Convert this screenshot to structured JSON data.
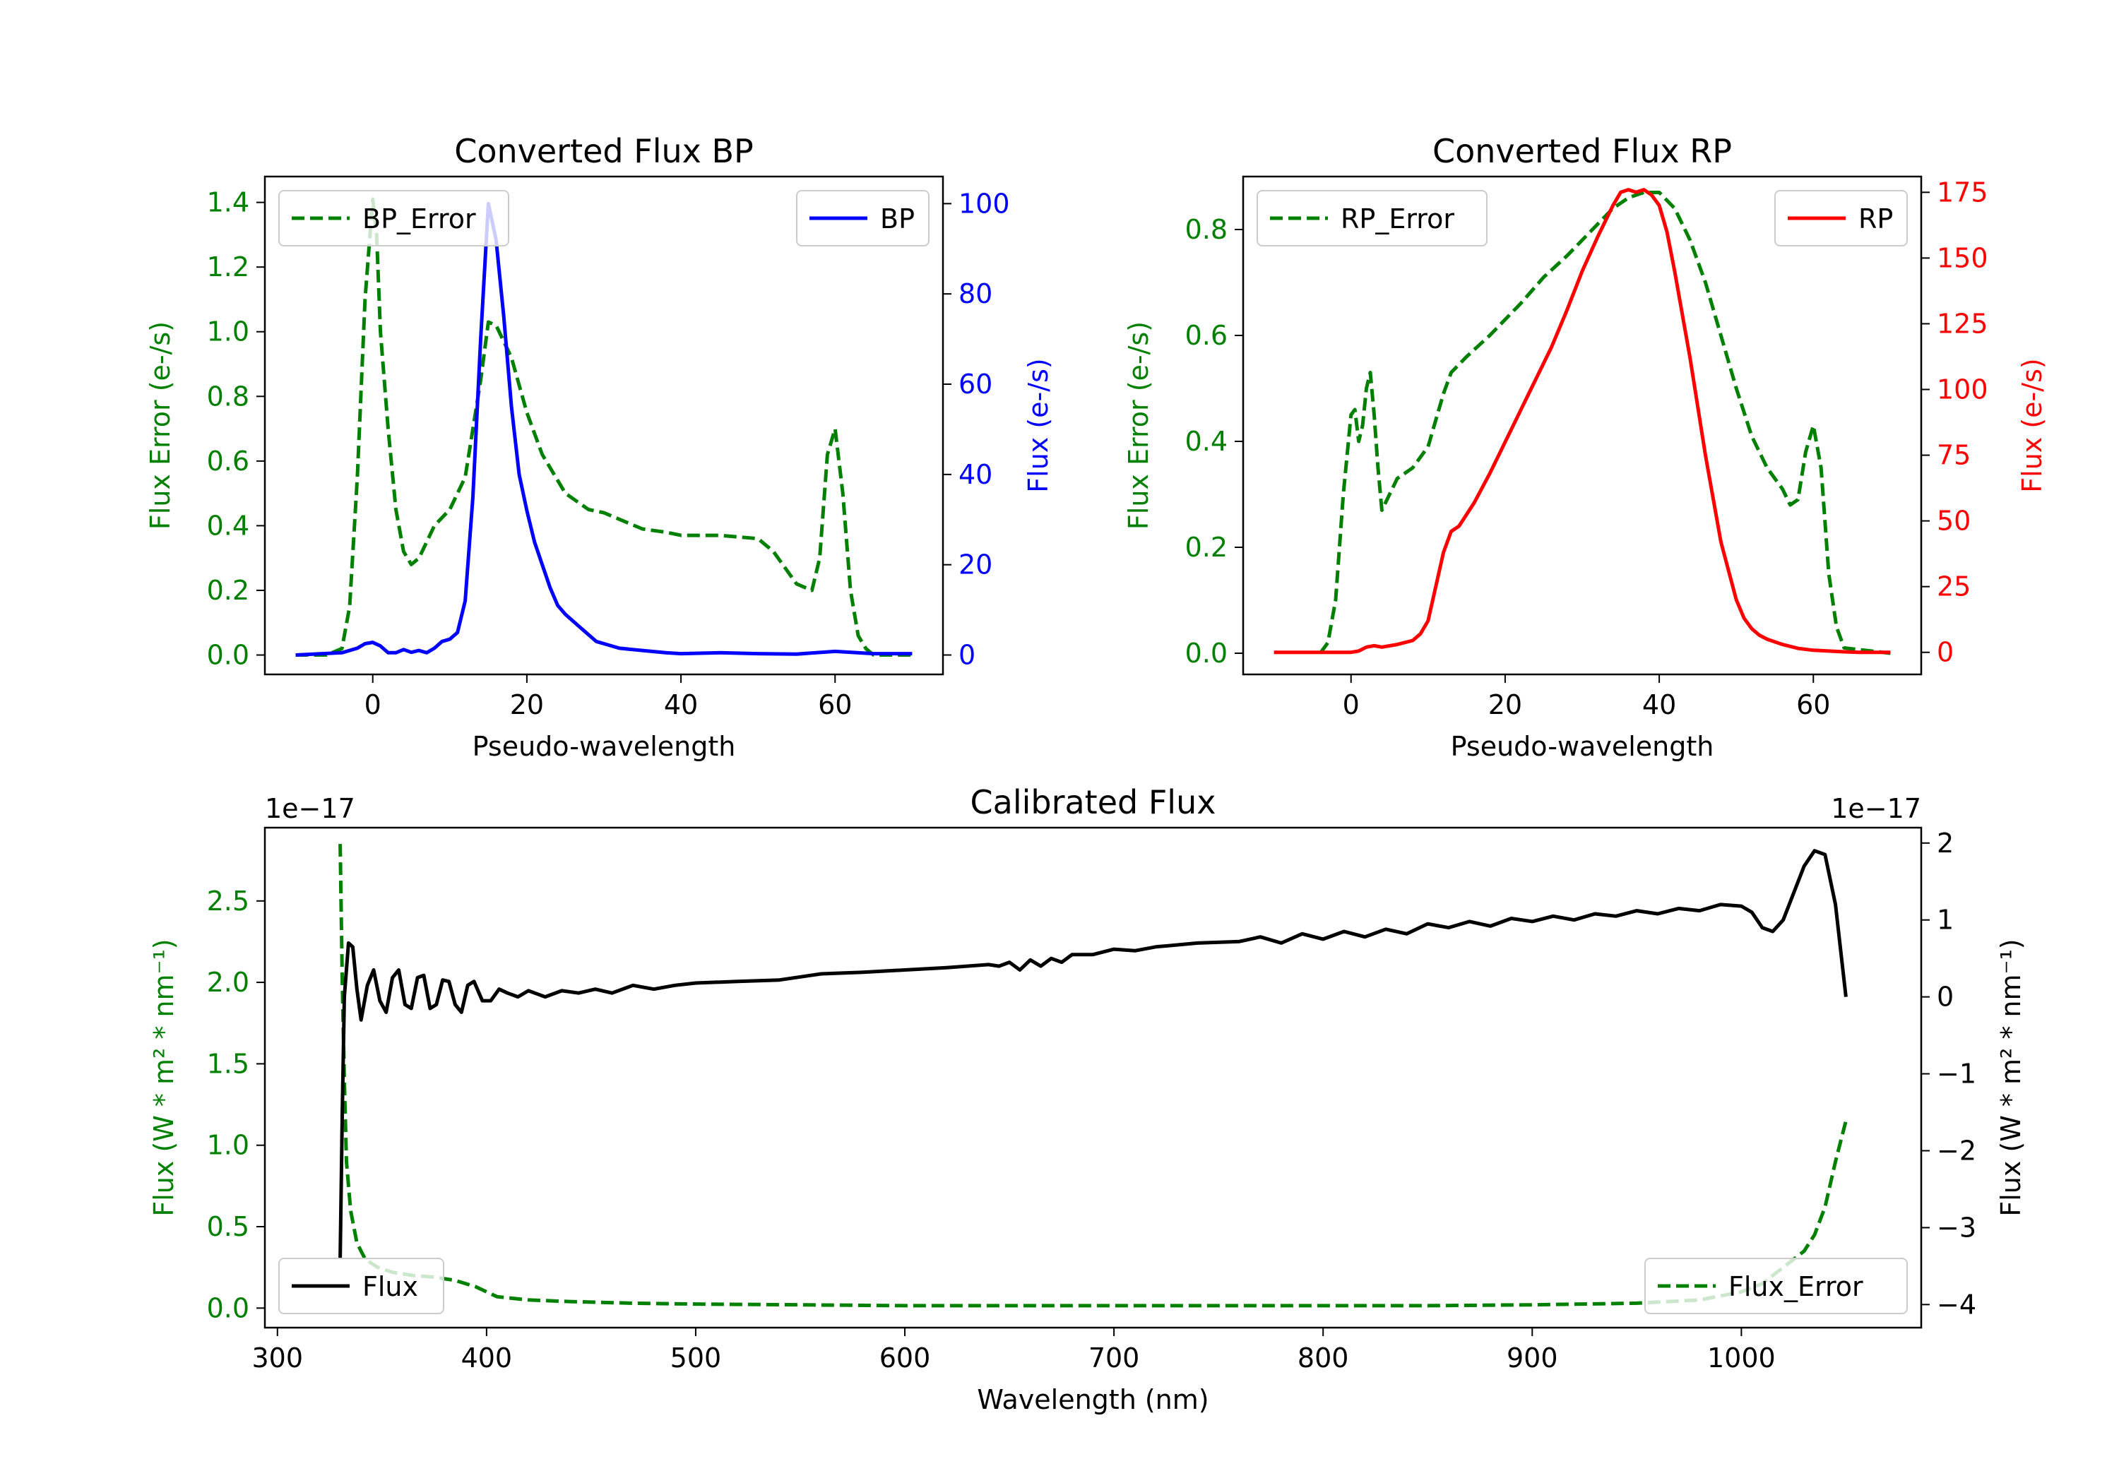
{
  "colors": {
    "error": "#008000",
    "bp": "#0000ff",
    "rp": "#ff0000",
    "flux": "#000000",
    "axis": "#000000"
  },
  "chart_data": [
    {
      "id": "bp",
      "type": "line",
      "title": "Converted Flux BP",
      "xlabel": "Pseudo-wavelength",
      "ylabel_left": "Flux Error (e-/s)",
      "ylabel_right": "Flux (e-/s)",
      "xlim": [
        -14,
        74
      ],
      "ylim_left": [
        -0.06,
        1.48
      ],
      "ylim_right": [
        -4.3,
        106
      ],
      "xticks": [
        0,
        20,
        40,
        60
      ],
      "xtick_labels": [
        "0",
        "20",
        "40",
        "60"
      ],
      "yticks_left": [
        0.0,
        0.2,
        0.4,
        0.6,
        0.8,
        1.0,
        1.2,
        1.4
      ],
      "ytick_labels_left": [
        "0.0",
        "0.2",
        "0.4",
        "0.6",
        "0.8",
        "1.0",
        "1.2",
        "1.4"
      ],
      "yticks_right": [
        0,
        20,
        40,
        60,
        80,
        100
      ],
      "ytick_labels_right": [
        "0",
        "20",
        "40",
        "60",
        "80",
        "100"
      ],
      "legend_left": {
        "label": "BP_Error",
        "placement": "upper left"
      },
      "legend_right": {
        "label": "BP",
        "placement": "upper right"
      },
      "series": [
        {
          "name": "BP_Error",
          "axis": "left",
          "style": "dashed",
          "color_key": "error",
          "x": [
            -10,
            -6,
            -4,
            -3,
            -2,
            -1,
            0,
            0.5,
            1,
            2,
            3,
            4,
            5,
            6,
            7,
            8,
            10,
            12,
            14,
            15,
            16,
            18,
            20,
            22,
            25,
            28,
            30,
            32,
            35,
            38,
            40,
            45,
            50,
            52,
            55,
            57,
            58,
            59,
            60,
            61,
            62,
            63,
            64,
            65,
            70
          ],
          "y": [
            0.0,
            0.0,
            0.02,
            0.15,
            0.55,
            1.1,
            1.41,
            1.3,
            1.0,
            0.7,
            0.45,
            0.32,
            0.28,
            0.3,
            0.35,
            0.4,
            0.45,
            0.55,
            0.85,
            1.03,
            1.02,
            0.92,
            0.75,
            0.62,
            0.5,
            0.45,
            0.44,
            0.42,
            0.39,
            0.38,
            0.37,
            0.37,
            0.36,
            0.32,
            0.22,
            0.2,
            0.3,
            0.62,
            0.7,
            0.5,
            0.2,
            0.06,
            0.02,
            0.0,
            0.0
          ]
        },
        {
          "name": "BP",
          "axis": "right",
          "style": "solid",
          "color_key": "bp",
          "x": [
            -10,
            -4,
            -2,
            -1,
            0,
            1,
            2,
            3,
            4,
            5,
            6,
            7,
            8,
            9,
            10,
            11,
            12,
            13,
            14,
            15,
            16,
            17,
            18,
            19,
            20,
            21,
            22,
            23,
            24,
            25,
            26,
            27,
            28,
            29,
            30,
            32,
            35,
            38,
            40,
            45,
            50,
            55,
            60,
            65,
            70
          ],
          "y": [
            0,
            0.5,
            1.5,
            2.5,
            2.8,
            2.0,
            0.5,
            0.5,
            1.2,
            0.6,
            1.0,
            0.5,
            1.5,
            3.0,
            3.5,
            5.0,
            12.0,
            35.0,
            70.0,
            100.0,
            92.0,
            75.0,
            55.0,
            40.0,
            32.0,
            25.0,
            20.0,
            15.0,
            11.0,
            9.0,
            7.5,
            6.0,
            4.5,
            3.0,
            2.5,
            1.5,
            1.0,
            0.5,
            0.3,
            0.5,
            0.3,
            0.2,
            0.8,
            0.3,
            0.3
          ]
        }
      ]
    },
    {
      "id": "rp",
      "type": "line",
      "title": "Converted Flux RP",
      "xlabel": "Pseudo-wavelength",
      "ylabel_left": "Flux Error (e-/s)",
      "ylabel_right": "Flux (e-/s)",
      "xlim": [
        -14,
        74
      ],
      "ylim_left": [
        -0.04,
        0.9
      ],
      "ylim_right": [
        -8.4,
        181
      ],
      "xticks": [
        0,
        20,
        40,
        60
      ],
      "xtick_labels": [
        "0",
        "20",
        "40",
        "60"
      ],
      "yticks_left": [
        0.0,
        0.2,
        0.4,
        0.6,
        0.8
      ],
      "ytick_labels_left": [
        "0.0",
        "0.2",
        "0.4",
        "0.6",
        "0.8"
      ],
      "yticks_right": [
        0,
        25,
        50,
        75,
        100,
        125,
        150,
        175
      ],
      "ytick_labels_right": [
        "0",
        "25",
        "50",
        "75",
        "100",
        "125",
        "150",
        "175"
      ],
      "legend_left": {
        "label": "RP_Error",
        "placement": "upper left"
      },
      "legend_right": {
        "label": "RP",
        "placement": "upper right"
      },
      "series": [
        {
          "name": "RP_Error",
          "axis": "left",
          "style": "dashed",
          "color_key": "error",
          "x": [
            -4,
            -3,
            -2,
            -1,
            0,
            0.5,
            1,
            1.5,
            2,
            2.5,
            3,
            3.5,
            4,
            5,
            6,
            8,
            10,
            11,
            12,
            13,
            15,
            18,
            20,
            22,
            25,
            28,
            30,
            32,
            34,
            36,
            38,
            40,
            42,
            44,
            46,
            48,
            50,
            52,
            54,
            55,
            56,
            57,
            58,
            59,
            60,
            61,
            62,
            63,
            64,
            70
          ],
          "y": [
            0.0,
            0.02,
            0.1,
            0.3,
            0.45,
            0.46,
            0.4,
            0.43,
            0.5,
            0.53,
            0.45,
            0.35,
            0.27,
            0.3,
            0.33,
            0.35,
            0.39,
            0.44,
            0.49,
            0.53,
            0.56,
            0.6,
            0.63,
            0.66,
            0.71,
            0.75,
            0.78,
            0.81,
            0.84,
            0.86,
            0.87,
            0.87,
            0.84,
            0.78,
            0.7,
            0.6,
            0.5,
            0.41,
            0.35,
            0.33,
            0.31,
            0.28,
            0.29,
            0.38,
            0.43,
            0.35,
            0.15,
            0.05,
            0.01,
            0.0
          ]
        },
        {
          "name": "RP",
          "axis": "right",
          "style": "solid",
          "color_key": "rp",
          "x": [
            -10,
            -2,
            0,
            1,
            2,
            3,
            4,
            6,
            8,
            9,
            10,
            11,
            12,
            13,
            14,
            16,
            18,
            20,
            22,
            24,
            26,
            28,
            30,
            32,
            34,
            35,
            36,
            37,
            38,
            39,
            40,
            41,
            42,
            44,
            46,
            48,
            50,
            51,
            52,
            53,
            54,
            56,
            58,
            60,
            62,
            64,
            66,
            70
          ],
          "y": [
            0,
            0,
            0,
            0.5,
            2.0,
            2.5,
            2.0,
            3.0,
            4.5,
            7.0,
            12.0,
            25.0,
            38.0,
            46.0,
            48.0,
            57.0,
            68.0,
            80.0,
            92.0,
            104.0,
            116.0,
            130.0,
            145.0,
            158.0,
            170.0,
            175.0,
            176.0,
            175.0,
            176.0,
            174.0,
            170.0,
            160.0,
            145.0,
            112.0,
            75.0,
            42.0,
            20.0,
            13.0,
            9.0,
            6.5,
            5.0,
            3.0,
            1.5,
            0.8,
            0.5,
            0.2,
            0.0,
            0.0
          ]
        }
      ]
    },
    {
      "id": "calibrated",
      "type": "line",
      "title": "Calibrated Flux",
      "xlabel": "Wavelength (nm)",
      "ylabel_left": "Flux (W * m² * nm⁻¹)",
      "ylabel_right": "Flux (W * m² * nm⁻¹)",
      "offset_left": "1e−17",
      "offset_right": "1e−17",
      "xlim": [
        294,
        1086
      ],
      "ylim_left": [
        -0.12,
        2.95
      ],
      "ylim_right": [
        -4.3,
        2.2
      ],
      "xticks": [
        300,
        400,
        500,
        600,
        700,
        800,
        900,
        1000
      ],
      "xtick_labels": [
        "300",
        "400",
        "500",
        "600",
        "700",
        "800",
        "900",
        "1000"
      ],
      "yticks_left": [
        0.0,
        0.5,
        1.0,
        1.5,
        2.0,
        2.5
      ],
      "ytick_labels_left": [
        "0.0",
        "0.5",
        "1.0",
        "1.5",
        "2.0",
        "2.5"
      ],
      "yticks_right": [
        -4,
        -3,
        -2,
        -1,
        0,
        1,
        2
      ],
      "ytick_labels_right": [
        "−4",
        "−3",
        "−2",
        "−1",
        "0",
        "1",
        "2"
      ],
      "legend_left": {
        "label": "Flux",
        "placement": "lower left"
      },
      "legend_right": {
        "label": "Flux_Error",
        "placement": "lower right"
      },
      "series": [
        {
          "name": "Flux_Error",
          "axis": "left",
          "style": "dashed",
          "color_key": "error",
          "x": [
            330,
            331,
            332,
            333,
            335,
            338,
            342,
            348,
            355,
            365,
            375,
            385,
            395,
            405,
            420,
            440,
            470,
            500,
            550,
            600,
            650,
            700,
            750,
            800,
            850,
            900,
            950,
            980,
            1000,
            1010,
            1020,
            1030,
            1035,
            1040,
            1045,
            1050
          ],
          "y": [
            2.85,
            2.0,
            1.4,
            0.9,
            0.6,
            0.4,
            0.3,
            0.25,
            0.22,
            0.2,
            0.19,
            0.17,
            0.13,
            0.07,
            0.05,
            0.04,
            0.03,
            0.025,
            0.02,
            0.015,
            0.015,
            0.015,
            0.015,
            0.015,
            0.015,
            0.02,
            0.03,
            0.05,
            0.1,
            0.15,
            0.25,
            0.35,
            0.45,
            0.62,
            0.9,
            1.15
          ]
        },
        {
          "name": "Flux",
          "axis": "right",
          "style": "solid",
          "color_key": "flux",
          "x": [
            330,
            331,
            332,
            334,
            336,
            338,
            340,
            343,
            346,
            349,
            352,
            355,
            358,
            361,
            364,
            367,
            370,
            373,
            376,
            379,
            382,
            385,
            388,
            391,
            394,
            398,
            402,
            406,
            410,
            415,
            420,
            428,
            436,
            444,
            452,
            460,
            470,
            480,
            490,
            500,
            520,
            540,
            560,
            580,
            600,
            620,
            640,
            645,
            650,
            655,
            660,
            665,
            670,
            675,
            680,
            690,
            700,
            710,
            720,
            740,
            760,
            770,
            780,
            790,
            800,
            810,
            820,
            830,
            840,
            850,
            860,
            870,
            880,
            890,
            900,
            910,
            920,
            930,
            940,
            950,
            960,
            970,
            980,
            990,
            1000,
            1005,
            1010,
            1015,
            1020,
            1025,
            1030,
            1035,
            1040,
            1045,
            1050
          ],
          "y": [
            -3.4,
            -1.5,
            0.0,
            0.7,
            0.65,
            0.1,
            -0.3,
            0.15,
            0.35,
            -0.05,
            -0.2,
            0.25,
            0.35,
            -0.1,
            -0.15,
            0.25,
            0.28,
            -0.15,
            -0.1,
            0.22,
            0.2,
            -0.1,
            -0.2,
            0.15,
            0.2,
            -0.05,
            -0.05,
            0.1,
            0.05,
            0.0,
            0.08,
            0.0,
            0.08,
            0.05,
            0.1,
            0.05,
            0.15,
            0.1,
            0.15,
            0.18,
            0.2,
            0.22,
            0.3,
            0.32,
            0.35,
            0.38,
            0.42,
            0.4,
            0.45,
            0.35,
            0.48,
            0.4,
            0.5,
            0.45,
            0.55,
            0.55,
            0.62,
            0.6,
            0.65,
            0.7,
            0.72,
            0.78,
            0.7,
            0.82,
            0.75,
            0.85,
            0.78,
            0.88,
            0.82,
            0.95,
            0.9,
            0.98,
            0.92,
            1.02,
            0.98,
            1.05,
            1.0,
            1.08,
            1.05,
            1.12,
            1.08,
            1.15,
            1.12,
            1.2,
            1.18,
            1.1,
            0.9,
            0.85,
            1.0,
            1.35,
            1.7,
            1.9,
            1.85,
            1.2,
            0.0
          ]
        }
      ]
    }
  ]
}
